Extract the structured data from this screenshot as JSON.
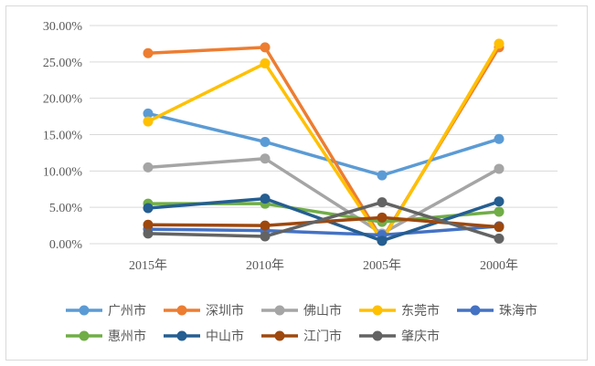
{
  "chart_data": {
    "type": "line",
    "title": "",
    "xlabel": "",
    "ylabel": "",
    "categories": [
      "2015年",
      "2010年",
      "2005年",
      "2000年"
    ],
    "ylim": [
      0,
      0.3
    ],
    "yticks": [
      "0.00%",
      "5.00%",
      "10.00%",
      "15.00%",
      "20.00%",
      "25.00%",
      "30.00%"
    ],
    "grid": "horizontal",
    "legend_position": "bottom",
    "series": [
      {
        "name": "广州市",
        "color": "#5B9BD5",
        "values": [
          0.179,
          0.14,
          0.094,
          0.144
        ]
      },
      {
        "name": "深圳市",
        "color": "#ED7D31",
        "values": [
          0.262,
          0.27,
          0.006,
          0.27
        ]
      },
      {
        "name": "佛山市",
        "color": "#A5A5A5",
        "values": [
          0.105,
          0.117,
          0.014,
          0.103
        ]
      },
      {
        "name": "东莞市",
        "color": "#FFC000",
        "values": [
          0.168,
          0.248,
          0.004,
          0.275
        ]
      },
      {
        "name": "珠海市",
        "color": "#4472C4",
        "values": [
          0.02,
          0.018,
          0.012,
          0.024
        ]
      },
      {
        "name": "惠州市",
        "color": "#70AD47",
        "values": [
          0.055,
          0.055,
          0.03,
          0.044
        ]
      },
      {
        "name": "中山市",
        "color": "#255E91",
        "values": [
          0.049,
          0.062,
          0.004,
          0.058
        ]
      },
      {
        "name": "江门市",
        "color": "#9E480E",
        "values": [
          0.026,
          0.025,
          0.036,
          0.023
        ]
      },
      {
        "name": "肇庆市",
        "color": "#636363",
        "values": [
          0.014,
          0.01,
          0.057,
          0.007
        ]
      }
    ]
  }
}
